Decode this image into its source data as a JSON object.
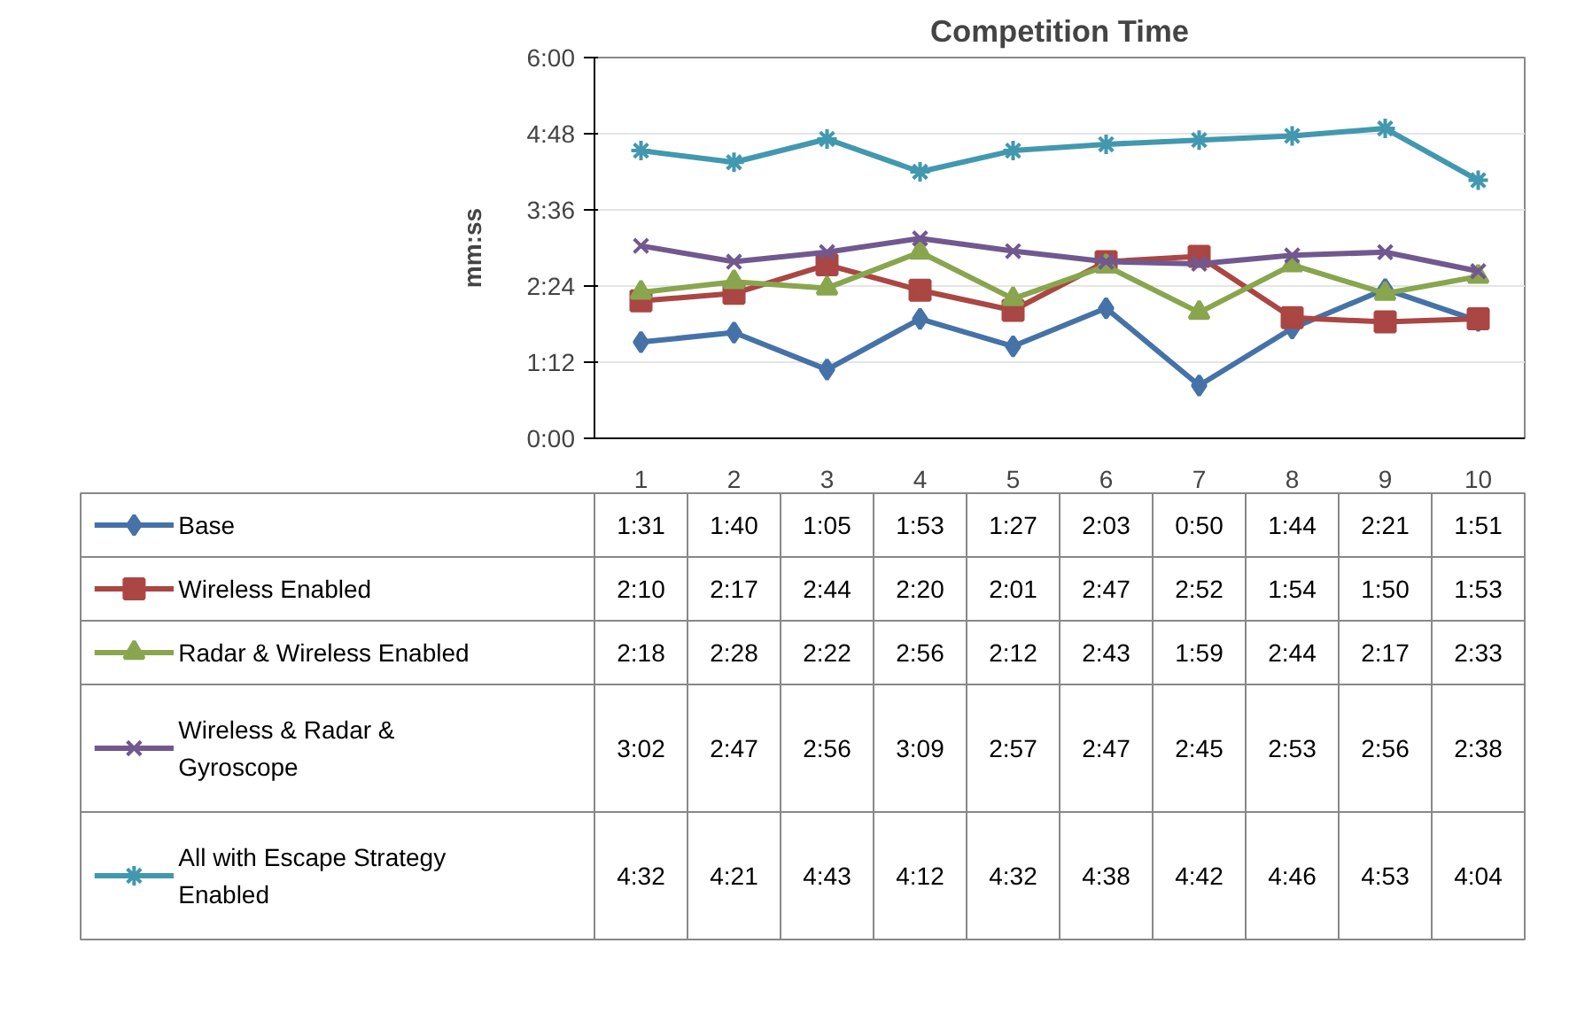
{
  "chart_data": {
    "type": "line",
    "title": "Competition Time",
    "ylabel": "mm:ss",
    "categories": [
      "1",
      "2",
      "3",
      "4",
      "5",
      "6",
      "7",
      "8",
      "9",
      "10"
    ],
    "ylim": [
      0,
      360
    ],
    "yticks": [
      {
        "value": 0,
        "label": "0:00"
      },
      {
        "value": 72,
        "label": "1:12"
      },
      {
        "value": 144,
        "label": "2:24"
      },
      {
        "value": 216,
        "label": "3:36"
      },
      {
        "value": 288,
        "label": "4:48"
      },
      {
        "value": 360,
        "label": "6:00"
      }
    ],
    "grid": "y",
    "legend": "bottom",
    "series": [
      {
        "name": "Base",
        "color": "#4572a7",
        "marker": "diamond",
        "values": [
          91,
          100,
          65,
          113,
          87,
          123,
          50,
          104,
          141,
          111
        ],
        "value_labels": [
          "1:31",
          "1:40",
          "1:05",
          "1:53",
          "1:27",
          "2:03",
          "0:50",
          "1:44",
          "2:21",
          "1:51"
        ]
      },
      {
        "name": "Wireless Enabled",
        "color": "#aa4643",
        "marker": "square",
        "values": [
          130,
          137,
          164,
          140,
          121,
          167,
          172,
          114,
          110,
          113
        ],
        "value_labels": [
          "2:10",
          "2:17",
          "2:44",
          "2:20",
          "2:01",
          "2:47",
          "2:52",
          "1:54",
          "1:50",
          "1:53"
        ]
      },
      {
        "name": "Radar & Wireless Enabled",
        "color": "#89a54e",
        "marker": "triangle",
        "values": [
          138,
          148,
          142,
          176,
          132,
          163,
          119,
          164,
          137,
          153
        ],
        "value_labels": [
          "2:18",
          "2:28",
          "2:22",
          "2:56",
          "2:12",
          "2:43",
          "1:59",
          "2:44",
          "2:17",
          "2:33"
        ]
      },
      {
        "name": "Wireless & Radar & Gyroscope",
        "color": "#71588f",
        "marker": "cross",
        "values": [
          182,
          167,
          176,
          189,
          177,
          167,
          165,
          173,
          176,
          158
        ],
        "value_labels": [
          "3:02",
          "2:47",
          "2:56",
          "3:09",
          "2:57",
          "2:47",
          "2:45",
          "2:53",
          "2:56",
          "2:38"
        ]
      },
      {
        "name": "All with Escape Strategy Enabled",
        "color": "#4198af",
        "marker": "cross",
        "values": [
          272,
          261,
          283,
          252,
          272,
          278,
          282,
          286,
          293,
          244
        ],
        "value_labels": [
          "4:32",
          "4:21",
          "4:43",
          "4:12",
          "4:32",
          "4:38",
          "4:42",
          "4:46",
          "4:53",
          "4:04"
        ]
      }
    ]
  }
}
